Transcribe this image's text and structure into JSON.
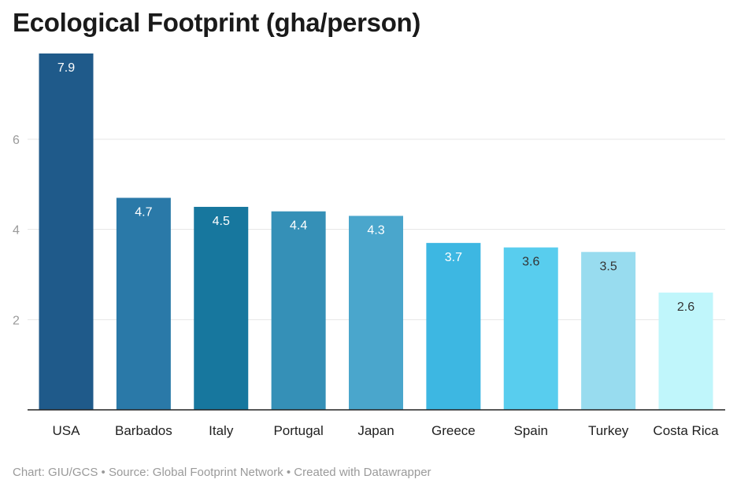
{
  "chart_data": {
    "type": "bar",
    "title": "Ecological Footprint (gha/person)",
    "categories": [
      "USA",
      "Barbados",
      "Italy",
      "Portugal",
      "Japan",
      "Greece",
      "Spain",
      "Turkey",
      "Costa Rica"
    ],
    "values": [
      7.9,
      4.7,
      4.5,
      4.4,
      4.3,
      3.7,
      3.6,
      3.5,
      2.6
    ],
    "value_labels": [
      "7.9",
      "4.7",
      "4.5",
      "4.4",
      "4.3",
      "3.7",
      "3.6",
      "3.5",
      "2.6"
    ],
    "colors": [
      "#1f5a8a",
      "#2a79a8",
      "#17779e",
      "#3590b7",
      "#4aa6cc",
      "#3db7e2",
      "#58cdee",
      "#98dcef",
      "#c0f6fb"
    ],
    "label_colors": [
      "#ffffff",
      "#ffffff",
      "#ffffff",
      "#ffffff",
      "#ffffff",
      "#ffffff",
      "#333333",
      "#333333",
      "#333333"
    ],
    "yticks": [
      2,
      4,
      6
    ],
    "ytick_labels": [
      "2",
      "4",
      "6"
    ],
    "ylim": [
      0,
      7.9
    ],
    "grid": true,
    "xlabel": "",
    "ylabel": ""
  },
  "footer": "Chart: GIU/GCS • Source: Global Footprint Network • Created with Datawrapper"
}
